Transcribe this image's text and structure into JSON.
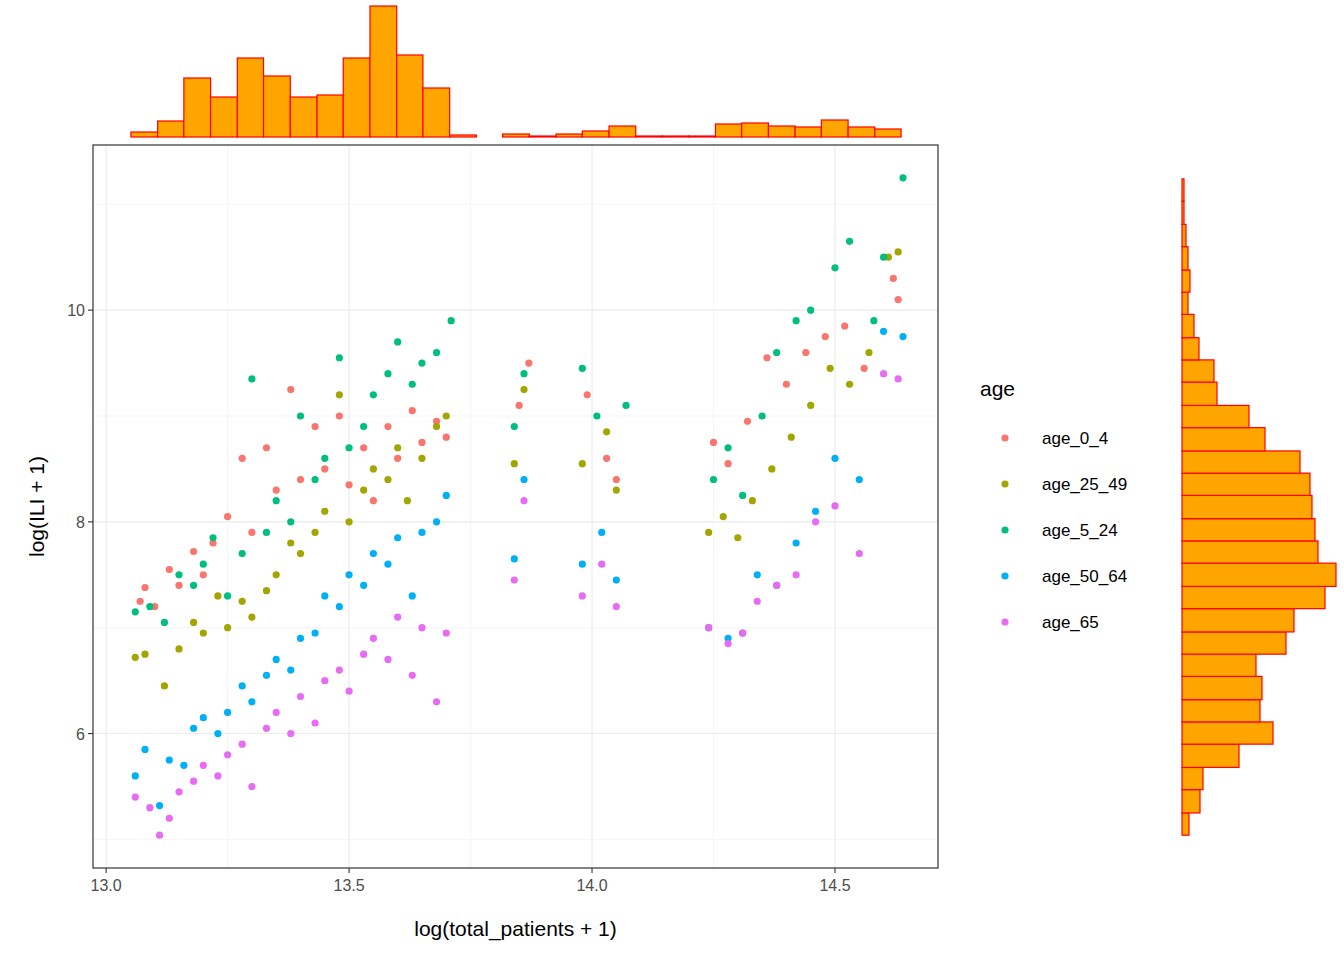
{
  "chart_data": [
    {
      "type": "scatter",
      "x_label": "log(total_patients + 1)",
      "y_label": "log(ILI + 1)",
      "legend_title": "age",
      "legend": "right",
      "grid": true,
      "marker": "circle",
      "xlim": [
        12.973,
        14.712
      ],
      "ylim": [
        4.73,
        11.56
      ],
      "xticks": [
        {
          "value": 13,
          "label": "13.0"
        },
        13.5,
        {
          "value": 14,
          "label": "14.0"
        },
        14.5
      ],
      "yticks": [
        6,
        8,
        10
      ],
      "series": [
        {
          "name": "age_0_4",
          "color": "#F8766D",
          "x": [
            13.07,
            13.08,
            13.1,
            13.13,
            13.15,
            13.18,
            13.2,
            13.22,
            13.25,
            13.28,
            13.3,
            13.33,
            13.35,
            13.38,
            13.4,
            13.43,
            13.45,
            13.48,
            13.5,
            13.53,
            13.55,
            13.58,
            13.6,
            13.63,
            13.65,
            13.68,
            13.7,
            13.85,
            13.87,
            13.99,
            14.03,
            14.05,
            14.25,
            14.28,
            14.32,
            14.36,
            14.4,
            14.44,
            14.48,
            14.52,
            14.56,
            14.62,
            14.63
          ],
          "values": [
            7.25,
            7.38,
            7.2,
            7.55,
            7.4,
            7.72,
            7.5,
            7.8,
            8.05,
            8.6,
            7.9,
            8.7,
            8.3,
            9.25,
            8.4,
            8.9,
            8.5,
            9.0,
            8.35,
            8.7,
            8.2,
            8.9,
            8.6,
            9.05,
            8.75,
            8.95,
            8.8,
            9.1,
            9.5,
            9.2,
            8.6,
            8.4,
            8.75,
            8.55,
            8.95,
            9.55,
            9.3,
            9.6,
            9.75,
            9.85,
            9.45,
            10.3,
            10.1
          ]
        },
        {
          "name": "age_25_49",
          "color": "#A3A500",
          "x": [
            13.06,
            13.08,
            13.12,
            13.15,
            13.18,
            13.2,
            13.23,
            13.25,
            13.28,
            13.3,
            13.33,
            13.35,
            13.38,
            13.4,
            13.43,
            13.45,
            13.48,
            13.5,
            13.53,
            13.55,
            13.58,
            13.6,
            13.62,
            13.65,
            13.68,
            13.7,
            13.84,
            13.86,
            13.98,
            14.03,
            14.05,
            14.24,
            14.27,
            14.3,
            14.33,
            14.37,
            14.41,
            14.45,
            14.49,
            14.53,
            14.57,
            14.61,
            14.63
          ],
          "values": [
            6.72,
            6.75,
            6.45,
            6.8,
            7.05,
            6.95,
            7.3,
            7.0,
            7.25,
            7.1,
            7.35,
            7.5,
            7.8,
            7.7,
            7.9,
            8.1,
            9.2,
            8.0,
            8.3,
            8.5,
            8.4,
            8.7,
            8.2,
            8.6,
            8.9,
            9.0,
            8.55,
            9.25,
            8.55,
            8.85,
            8.3,
            7.9,
            8.05,
            7.85,
            8.2,
            8.5,
            8.8,
            9.1,
            9.45,
            9.3,
            9.6,
            10.5,
            10.55
          ]
        },
        {
          "name": "age_5_24",
          "color": "#00BF7D",
          "x": [
            13.06,
            13.09,
            13.12,
            13.15,
            13.18,
            13.2,
            13.22,
            13.25,
            13.28,
            13.3,
            13.33,
            13.35,
            13.38,
            13.4,
            13.43,
            13.45,
            13.48,
            13.5,
            13.53,
            13.55,
            13.58,
            13.6,
            13.63,
            13.65,
            13.68,
            13.71,
            13.84,
            13.86,
            13.98,
            14.01,
            14.07,
            14.25,
            14.28,
            14.31,
            14.35,
            14.38,
            14.42,
            14.45,
            14.5,
            14.53,
            14.58,
            14.6,
            14.64
          ],
          "values": [
            7.15,
            7.2,
            7.05,
            7.5,
            7.4,
            7.6,
            7.85,
            7.3,
            7.7,
            9.35,
            7.9,
            8.2,
            8.0,
            9.0,
            8.4,
            8.6,
            9.55,
            8.7,
            8.9,
            9.2,
            9.4,
            9.7,
            9.3,
            9.5,
            9.6,
            9.9,
            8.9,
            9.4,
            9.45,
            9.0,
            9.1,
            8.4,
            8.7,
            8.25,
            9.0,
            9.6,
            9.9,
            10.0,
            10.4,
            10.65,
            9.9,
            10.5,
            11.25
          ]
        },
        {
          "name": "age_50_64",
          "color": "#00B0F6",
          "x": [
            13.06,
            13.08,
            13.11,
            13.13,
            13.16,
            13.18,
            13.2,
            13.23,
            13.25,
            13.28,
            13.3,
            13.33,
            13.35,
            13.38,
            13.4,
            13.43,
            13.45,
            13.48,
            13.5,
            13.53,
            13.55,
            13.58,
            13.6,
            13.63,
            13.65,
            13.68,
            13.7,
            13.84,
            13.86,
            13.98,
            14.02,
            14.05,
            14.24,
            14.28,
            14.31,
            14.34,
            14.38,
            14.42,
            14.46,
            14.5,
            14.55,
            14.6,
            14.64
          ],
          "values": [
            5.6,
            5.85,
            5.32,
            5.75,
            5.7,
            6.05,
            6.15,
            6.0,
            6.2,
            6.45,
            6.3,
            6.55,
            6.7,
            6.6,
            6.9,
            6.95,
            7.3,
            7.2,
            7.5,
            7.4,
            7.7,
            7.6,
            7.85,
            7.3,
            7.9,
            8.0,
            8.25,
            7.65,
            8.4,
            7.6,
            7.9,
            7.45,
            7.0,
            6.9,
            6.95,
            7.5,
            7.4,
            7.8,
            8.1,
            8.6,
            8.4,
            9.8,
            9.75
          ]
        },
        {
          "name": "age_65",
          "color": "#E76BF3",
          "x": [
            13.06,
            13.09,
            13.11,
            13.13,
            13.15,
            13.18,
            13.2,
            13.23,
            13.25,
            13.28,
            13.3,
            13.33,
            13.35,
            13.38,
            13.4,
            13.43,
            13.45,
            13.48,
            13.5,
            13.53,
            13.55,
            13.58,
            13.6,
            13.63,
            13.65,
            13.68,
            13.7,
            13.84,
            13.86,
            13.98,
            14.02,
            14.05,
            14.24,
            14.28,
            14.31,
            14.34,
            14.38,
            14.42,
            14.46,
            14.5,
            14.55,
            14.6,
            14.63
          ],
          "values": [
            5.4,
            5.3,
            5.04,
            5.2,
            5.45,
            5.55,
            5.7,
            5.6,
            5.8,
            5.9,
            5.5,
            6.05,
            6.2,
            6.0,
            6.35,
            6.1,
            6.5,
            6.6,
            6.4,
            6.75,
            6.9,
            6.7,
            7.1,
            6.55,
            7.0,
            6.3,
            6.95,
            7.45,
            8.2,
            7.3,
            7.6,
            7.2,
            7.0,
            6.85,
            6.95,
            7.25,
            7.4,
            7.5,
            8.0,
            8.15,
            7.7,
            9.4,
            9.35
          ]
        }
      ]
    },
    {
      "type": "histogram",
      "color": "#FFA500",
      "tick_labels": false,
      "xlim": [
        12.973,
        14.712
      ],
      "ylim": [
        0,
        135
      ],
      "bins": [
        13.051,
        13.106,
        13.16,
        13.215,
        13.27,
        13.324,
        13.379,
        13.434,
        13.488,
        13.543,
        13.598,
        13.652,
        13.707,
        13.762,
        13.816,
        13.871,
        13.926,
        13.98,
        14.035,
        14.09,
        14.144,
        14.199,
        14.254,
        14.308,
        14.363,
        14.418,
        14.472,
        14.527,
        14.582,
        14.636
      ],
      "values": [
        5,
        16,
        59,
        40,
        79,
        61,
        40,
        42,
        79,
        131,
        82,
        49,
        2,
        0,
        3,
        1,
        3,
        6,
        11,
        1,
        1,
        1,
        13,
        14,
        11,
        10,
        17,
        10,
        8
      ]
    },
    {
      "type": "histogram",
      "orientation": "horizontal",
      "color": "#FFA500",
      "tick_labels": false,
      "ylim": [
        4.73,
        11.56
      ],
      "xlim": [
        0,
        160
      ],
      "bins": [
        5.04,
        5.25,
        5.47,
        5.68,
        5.9,
        6.11,
        6.32,
        6.54,
        6.75,
        6.96,
        7.18,
        7.39,
        7.61,
        7.82,
        8.03,
        8.25,
        8.46,
        8.67,
        8.89,
        9.1,
        9.32,
        9.53,
        9.74,
        9.96,
        10.17,
        10.38,
        10.6,
        10.81,
        11.03,
        11.24
      ],
      "values": [
        7,
        18,
        21,
        57,
        91,
        78,
        80,
        74,
        104,
        112,
        143,
        154,
        136,
        133,
        130,
        128,
        118,
        83,
        67,
        35,
        32,
        17,
        12,
        6,
        8,
        6,
        4,
        2,
        2
      ]
    }
  ]
}
